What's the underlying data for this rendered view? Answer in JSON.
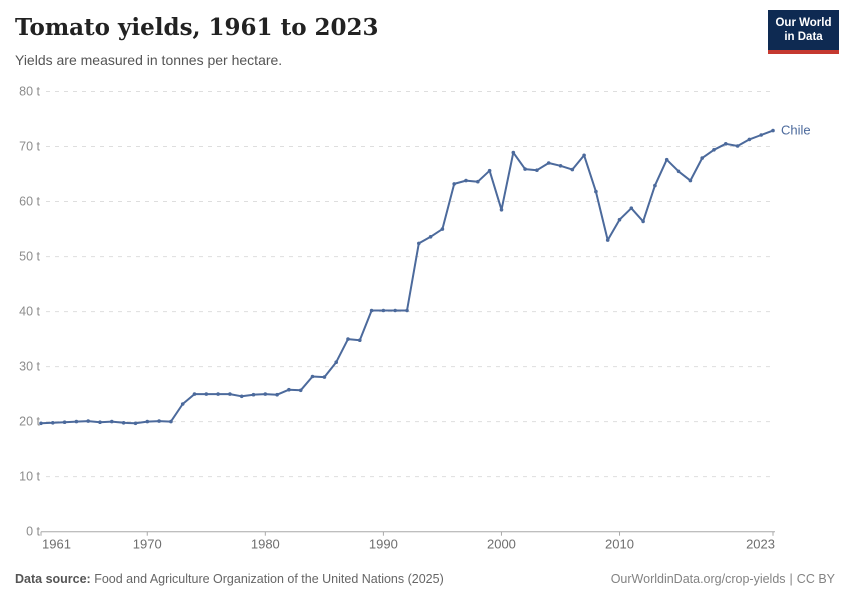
{
  "header": {
    "title": "Tomato yields, 1961 to 2023",
    "subtitle": "Yields are measured in tonnes per hectare.",
    "logo_line1": "Our World",
    "logo_line2": "in Data"
  },
  "footer": {
    "datasource_label": "Data source:",
    "datasource_text": "Food and Agriculture Organization of the United Nations (2025)",
    "url": "OurWorldinData.org/crop-yields",
    "separator": "|",
    "license": "CC BY"
  },
  "colors": {
    "series_blue": "#4c6a9c",
    "gridline": "#dedede",
    "axis_line": "#a8a8a8",
    "y_tick_label": "#8c8c8c",
    "x_tick_label": "#6e6e6e",
    "logo_navy": "#0e2a52",
    "logo_red": "#c53930"
  },
  "chart_data": {
    "type": "line",
    "title": "Tomato yields, 1961 to 2023",
    "subtitle": "Yields are measured in tonnes per hectare.",
    "unit": "t",
    "ylabel": "tonnes per hectare",
    "ylim": [
      0,
      80
    ],
    "yticks": [
      0,
      10,
      20,
      30,
      40,
      50,
      60,
      70,
      80
    ],
    "ytick_suffix": " t",
    "xticks": [
      1961,
      1970,
      1980,
      1990,
      2000,
      2010,
      2023
    ],
    "grid": "dashed-horizontal",
    "legend_position": "end-of-line",
    "x": [
      1961,
      1962,
      1963,
      1964,
      1965,
      1966,
      1967,
      1968,
      1969,
      1970,
      1971,
      1972,
      1973,
      1974,
      1975,
      1976,
      1977,
      1978,
      1979,
      1980,
      1981,
      1982,
      1983,
      1984,
      1985,
      1986,
      1987,
      1988,
      1989,
      1990,
      1991,
      1992,
      1993,
      1994,
      1995,
      1996,
      1997,
      1998,
      1999,
      2000,
      2001,
      2002,
      2003,
      2004,
      2005,
      2006,
      2007,
      2008,
      2009,
      2010,
      2011,
      2012,
      2013,
      2014,
      2015,
      2016,
      2017,
      2018,
      2019,
      2020,
      2021,
      2022,
      2023
    ],
    "series": [
      {
        "name": "Chile",
        "color": "#4c6a9c",
        "values": [
          19.7,
          19.8,
          19.9,
          20.0,
          20.1,
          19.9,
          20.0,
          19.8,
          19.7,
          20.0,
          20.1,
          20.0,
          23.2,
          25.0,
          25.0,
          25.0,
          25.0,
          24.6,
          24.9,
          25.0,
          24.9,
          25.8,
          25.7,
          28.2,
          28.1,
          30.8,
          35.0,
          34.8,
          40.2,
          40.2,
          40.2,
          40.2,
          52.4,
          53.6,
          55.0,
          63.2,
          63.8,
          63.6,
          65.6,
          58.5,
          68.9,
          65.9,
          65.7,
          67.0,
          66.5,
          65.8,
          68.4,
          61.8,
          53.0,
          56.7,
          58.8,
          56.4,
          62.9,
          67.6,
          65.5,
          63.8,
          67.9,
          69.4,
          70.5,
          70.1,
          71.3,
          72.1,
          72.9
        ]
      }
    ]
  }
}
